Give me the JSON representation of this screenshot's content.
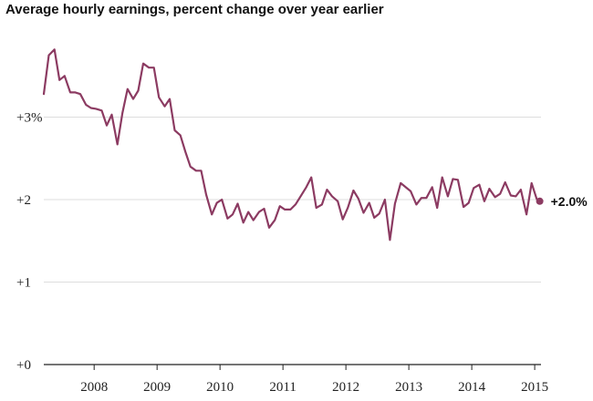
{
  "chart_data": {
    "type": "line",
    "title": "Average hourly earnings, percent change over year earlier",
    "xlabel": "",
    "ylabel": "",
    "ylim": [
      0,
      4
    ],
    "xlim": [
      2007.2,
      2015.1
    ],
    "y_ticks": [
      {
        "value": 0,
        "label": "+0"
      },
      {
        "value": 1,
        "label": "+1"
      },
      {
        "value": 2,
        "label": "+2"
      },
      {
        "value": 3,
        "label": "+3%"
      }
    ],
    "x_ticks": [
      {
        "value": 2008,
        "label": "2008"
      },
      {
        "value": 2009,
        "label": "2009"
      },
      {
        "value": 2010,
        "label": "2010"
      },
      {
        "value": 2011,
        "label": "2011"
      },
      {
        "value": 2012,
        "label": "2012"
      },
      {
        "value": 2013,
        "label": "2013"
      },
      {
        "value": 2014,
        "label": "2014"
      },
      {
        "value": 2015,
        "label": "2015"
      }
    ],
    "grid": true,
    "colors": {
      "line": "#8c3b62",
      "grid": "#dddddd",
      "axis": "#222222"
    },
    "series": [
      {
        "x": [
          2007.2,
          2007.28,
          2007.37,
          2007.45,
          2007.53,
          2007.62,
          2007.7,
          2007.78,
          2007.87,
          2007.95,
          2008.03,
          2008.12,
          2008.2,
          2008.28,
          2008.37,
          2008.45,
          2008.53,
          2008.62,
          2008.7,
          2008.78,
          2008.87,
          2008.95,
          2009.03,
          2009.12,
          2009.2,
          2009.28,
          2009.37,
          2009.45,
          2009.53,
          2009.62,
          2009.7,
          2009.78,
          2009.87,
          2009.95,
          2010.03,
          2010.12,
          2010.2,
          2010.28,
          2010.37,
          2010.45,
          2010.53,
          2010.62,
          2010.7,
          2010.78,
          2010.87,
          2010.95,
          2011.03,
          2011.12,
          2011.2,
          2011.28,
          2011.37,
          2011.45,
          2011.53,
          2011.62,
          2011.7,
          2011.78,
          2011.87,
          2011.95,
          2012.03,
          2012.12,
          2012.2,
          2012.28,
          2012.37,
          2012.45,
          2012.53,
          2012.62,
          2012.7,
          2012.78,
          2012.87,
          2012.95,
          2013.03,
          2013.12,
          2013.2,
          2013.28,
          2013.37,
          2013.45,
          2013.53,
          2013.62,
          2013.7,
          2013.78,
          2013.87,
          2013.95,
          2014.03,
          2014.12,
          2014.2,
          2014.28,
          2014.37,
          2014.45,
          2014.53,
          2014.62,
          2014.7,
          2014.78,
          2014.87,
          2014.95,
          2015.03,
          2015.08
        ],
        "values": [
          3.28,
          3.75,
          3.82,
          3.45,
          3.5,
          3.3,
          3.3,
          3.28,
          3.15,
          3.11,
          3.1,
          3.08,
          2.9,
          3.03,
          2.67,
          3.05,
          3.34,
          3.22,
          3.32,
          3.65,
          3.6,
          3.6,
          3.24,
          3.13,
          3.22,
          2.84,
          2.78,
          2.58,
          2.4,
          2.35,
          2.35,
          2.06,
          1.82,
          1.96,
          2.0,
          1.77,
          1.82,
          1.95,
          1.72,
          1.85,
          1.75,
          1.85,
          1.89,
          1.66,
          1.75,
          1.92,
          1.88,
          1.88,
          1.94,
          2.04,
          2.15,
          2.27,
          1.9,
          1.94,
          2.12,
          2.04,
          1.98,
          1.76,
          1.9,
          2.11,
          2.01,
          1.84,
          1.96,
          1.78,
          1.83,
          2.0,
          1.51,
          1.95,
          2.2,
          2.15,
          2.1,
          1.94,
          2.02,
          2.02,
          2.15,
          1.9,
          2.27,
          2.04,
          2.25,
          2.24,
          1.91,
          1.96,
          2.14,
          2.18,
          1.98,
          2.13,
          2.03,
          2.07,
          2.21,
          2.05,
          2.04,
          2.12,
          1.82,
          2.2,
          2.01,
          1.98
        ]
      }
    ],
    "end_label": "+2.0%"
  }
}
